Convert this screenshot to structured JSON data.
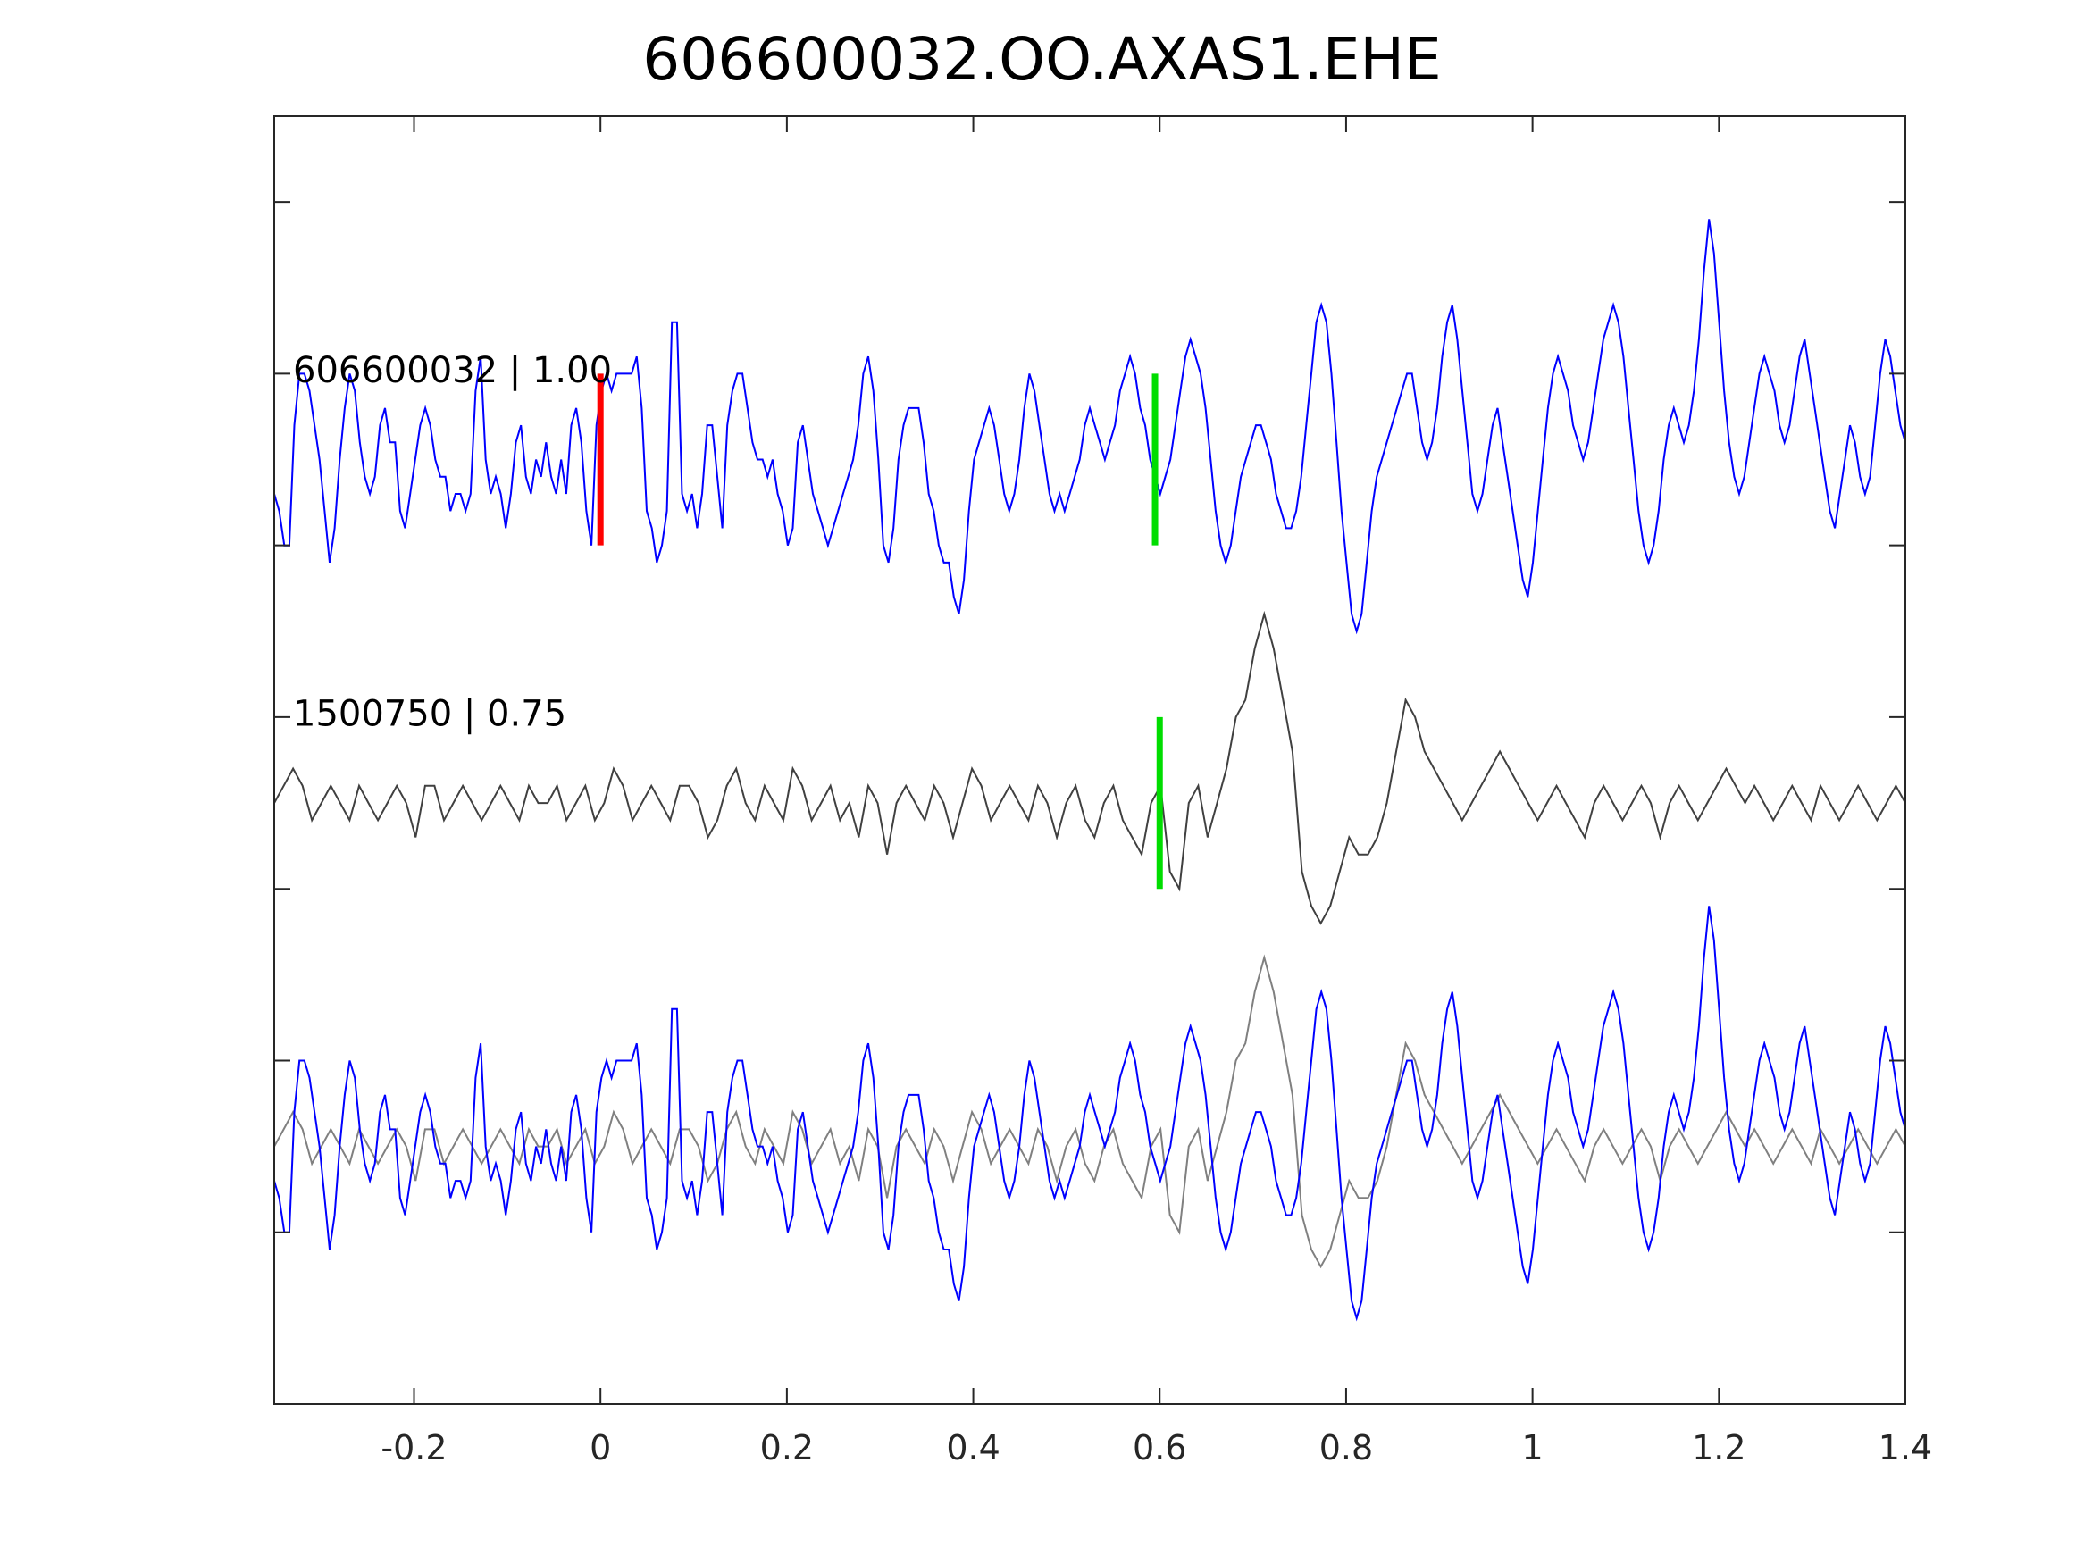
{
  "chart_data": {
    "type": "line",
    "title": "606600032.OO.AXAS1.EHE",
    "xlabel": "",
    "ylabel": "",
    "xlim": [
      -0.35,
      1.4
    ],
    "xticks": [
      -0.2,
      0,
      0.2,
      0.4,
      0.6,
      0.8,
      1,
      1.2,
      1.4
    ],
    "xtick_labels": [
      "-0.2",
      "0",
      "0.2",
      "0.4",
      "0.6",
      "0.8",
      "1",
      "1.2",
      "1.4"
    ],
    "ylim": [
      -0.5,
      7
    ],
    "yticks": [
      0.5,
      1.5,
      2.5,
      3.5,
      4.5,
      5.5,
      6.5
    ],
    "grid": false,
    "legend": "none",
    "traces": [
      {
        "label": "606600032 | 1.00",
        "color": "#0000ff",
        "offset": 5.0,
        "p_pick": 0.0,
        "s_pick": 0.595,
        "p_color": "#ff0000",
        "s_color": "#00dd00",
        "y": [
          -0.2,
          -0.3,
          -0.5,
          -0.5,
          0.2,
          0.5,
          0.5,
          0.4,
          0.2,
          0.0,
          -0.3,
          -0.6,
          -0.4,
          0.0,
          0.3,
          0.5,
          0.4,
          0.1,
          -0.1,
          -0.2,
          -0.1,
          0.2,
          0.3,
          0.1,
          0.1,
          -0.3,
          -0.4,
          -0.2,
          0.0,
          0.2,
          0.3,
          0.2,
          0.0,
          -0.1,
          -0.1,
          -0.3,
          -0.2,
          -0.2,
          -0.3,
          -0.2,
          0.4,
          0.6,
          0.0,
          -0.2,
          -0.1,
          -0.2,
          -0.4,
          -0.2,
          0.1,
          0.2,
          -0.1,
          -0.2,
          0.0,
          -0.1,
          0.1,
          -0.1,
          -0.2,
          0.0,
          -0.2,
          0.2,
          0.3,
          0.1,
          -0.3,
          -0.5,
          0.2,
          0.4,
          0.5,
          0.4,
          0.5,
          0.5,
          0.5,
          0.5,
          0.6,
          0.3,
          -0.3,
          -0.4,
          -0.6,
          -0.5,
          -0.3,
          0.8,
          0.8,
          -0.2,
          -0.3,
          -0.2,
          -0.4,
          -0.2,
          0.2,
          0.2,
          -0.1,
          -0.4,
          0.2,
          0.4,
          0.5,
          0.5,
          0.3,
          0.1,
          0.0,
          0.0,
          -0.1,
          0.0,
          -0.2,
          -0.3,
          -0.5,
          -0.4,
          0.1,
          0.2,
          0.0,
          -0.2,
          -0.3,
          -0.4,
          -0.5,
          -0.4,
          -0.3,
          -0.2,
          -0.1,
          0.0,
          0.2,
          0.5,
          0.6,
          0.4,
          0.0,
          -0.5,
          -0.6,
          -0.4,
          0.0,
          0.2,
          0.3,
          0.3,
          0.3,
          0.1,
          -0.2,
          -0.3,
          -0.5,
          -0.6,
          -0.6,
          -0.8,
          -0.9,
          -0.7,
          -0.3,
          0.0,
          0.1,
          0.2,
          0.3,
          0.2,
          0.0,
          -0.2,
          -0.3,
          -0.2,
          0.0,
          0.3,
          0.5,
          0.4,
          0.2,
          0.0,
          -0.2,
          -0.3,
          -0.2,
          -0.3,
          -0.2,
          -0.1,
          0.0,
          0.2,
          0.3,
          0.2,
          0.1,
          0.0,
          0.1,
          0.2,
          0.4,
          0.5,
          0.6,
          0.5,
          0.3,
          0.2,
          0.0,
          -0.1,
          -0.2,
          -0.1,
          0.0,
          0.2,
          0.4,
          0.6,
          0.7,
          0.6,
          0.5,
          0.3,
          0.0,
          -0.3,
          -0.5,
          -0.6,
          -0.5,
          -0.3,
          -0.1,
          0.0,
          0.1,
          0.2,
          0.2,
          0.1,
          0.0,
          -0.2,
          -0.3,
          -0.4,
          -0.4,
          -0.3,
          -0.1,
          0.2,
          0.5,
          0.8,
          0.9,
          0.8,
          0.5,
          0.1,
          -0.3,
          -0.6,
          -0.9,
          -1.0,
          -0.9,
          -0.6,
          -0.3,
          -0.1,
          0.0,
          0.1,
          0.2,
          0.3,
          0.4,
          0.5,
          0.5,
          0.3,
          0.1,
          0.0,
          0.1,
          0.3,
          0.6,
          0.8,
          0.9,
          0.7,
          0.4,
          0.1,
          -0.2,
          -0.3,
          -0.2,
          0.0,
          0.2,
          0.3,
          0.1,
          -0.1,
          -0.3,
          -0.5,
          -0.7,
          -0.8,
          -0.6,
          -0.3,
          0.0,
          0.3,
          0.5,
          0.6,
          0.5,
          0.4,
          0.2,
          0.1,
          0.0,
          0.1,
          0.3,
          0.5,
          0.7,
          0.8,
          0.9,
          0.8,
          0.6,
          0.3,
          0.0,
          -0.3,
          -0.5,
          -0.6,
          -0.5,
          -0.3,
          0.0,
          0.2,
          0.3,
          0.2,
          0.1,
          0.2,
          0.4,
          0.7,
          1.1,
          1.4,
          1.2,
          0.8,
          0.4,
          0.1,
          -0.1,
          -0.2,
          -0.1,
          0.1,
          0.3,
          0.5,
          0.6,
          0.5,
          0.4,
          0.2,
          0.1,
          0.2,
          0.4,
          0.6,
          0.7,
          0.5,
          0.3,
          0.1,
          -0.1,
          -0.3,
          -0.4,
          -0.2,
          0.0,
          0.2,
          0.1,
          -0.1,
          -0.2,
          -0.1,
          0.2,
          0.5,
          0.7,
          0.6,
          0.4,
          0.2,
          0.1
        ]
      },
      {
        "label": "1500750 | 0.75",
        "color": "#404040",
        "offset": 3.0,
        "s_pick": 0.6,
        "s_color": "#00dd00",
        "y": [
          0.0,
          0.1,
          0.2,
          0.1,
          -0.1,
          0.0,
          0.1,
          0.0,
          -0.1,
          0.1,
          0.0,
          -0.1,
          0.0,
          0.1,
          0.0,
          -0.2,
          0.1,
          0.1,
          -0.1,
          0.0,
          0.1,
          0.0,
          -0.1,
          0.0,
          0.1,
          0.0,
          -0.1,
          0.1,
          0.0,
          0.0,
          0.1,
          -0.1,
          0.0,
          0.1,
          -0.1,
          0.0,
          0.2,
          0.1,
          -0.1,
          0.0,
          0.1,
          0.0,
          -0.1,
          0.1,
          0.1,
          0.0,
          -0.2,
          -0.1,
          0.1,
          0.2,
          0.0,
          -0.1,
          0.1,
          0.0,
          -0.1,
          0.2,
          0.1,
          -0.1,
          0.0,
          0.1,
          -0.1,
          0.0,
          -0.2,
          0.1,
          0.0,
          -0.3,
          0.0,
          0.1,
          0.0,
          -0.1,
          0.1,
          0.0,
          -0.2,
          0.0,
          0.2,
          0.1,
          -0.1,
          0.0,
          0.1,
          0.0,
          -0.1,
          0.1,
          0.0,
          -0.2,
          0.0,
          0.1,
          -0.1,
          -0.2,
          0.0,
          0.1,
          -0.1,
          -0.2,
          -0.3,
          0.0,
          0.1,
          -0.4,
          -0.5,
          0.0,
          0.1,
          -0.2,
          0.0,
          0.2,
          0.5,
          0.6,
          0.9,
          1.1,
          0.9,
          0.6,
          0.3,
          -0.4,
          -0.6,
          -0.7,
          -0.6,
          -0.4,
          -0.2,
          -0.3,
          -0.3,
          -0.2,
          0.0,
          0.3,
          0.6,
          0.5,
          0.3,
          0.2,
          0.1,
          0.0,
          -0.1,
          0.0,
          0.1,
          0.2,
          0.3,
          0.2,
          0.1,
          0.0,
          -0.1,
          0.0,
          0.1,
          0.0,
          -0.1,
          -0.2,
          0.0,
          0.1,
          0.0,
          -0.1,
          0.0,
          0.1,
          0.0,
          -0.2,
          0.0,
          0.1,
          0.0,
          -0.1,
          0.0,
          0.1,
          0.2,
          0.1,
          0.0,
          0.1,
          0.0,
          -0.1,
          0.0,
          0.1,
          0.0,
          -0.1,
          0.1,
          0.0,
          -0.1,
          0.0,
          0.1,
          0.0,
          -0.1,
          0.0,
          0.1,
          0.0
        ]
      },
      {
        "label": "",
        "color": "#0000ff",
        "overlay_color": "#808080",
        "offset": 1.0,
        "note_overlay_of": [
          0,
          1
        ]
      }
    ]
  }
}
